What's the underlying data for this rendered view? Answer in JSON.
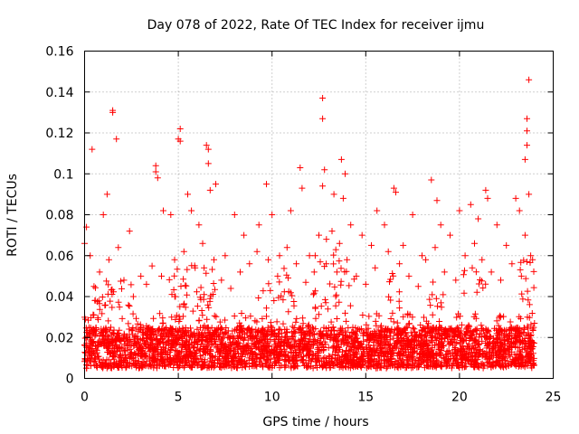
{
  "chart_data": {
    "type": "scatter",
    "title": "Day 078 of 2022, Rate Of TEC Index for receiver ijmu",
    "xlabel": "GPS time / hours",
    "ylabel": "ROTI / TECUs",
    "xlim": [
      0,
      25
    ],
    "ylim": [
      0,
      0.16
    ],
    "xticks": [
      0,
      5,
      10,
      15,
      20,
      25
    ],
    "xtick_labels": [
      "0",
      "5",
      "10",
      "15",
      "20",
      "25"
    ],
    "yticks": [
      0,
      0.02,
      0.04,
      0.06,
      0.08,
      0.1,
      0.12,
      0.14,
      0.16
    ],
    "ytick_labels": [
      "0",
      "0.02",
      "0.04",
      "0.06",
      "0.08",
      "0.1",
      "0.12",
      "0.14",
      "0.16"
    ],
    "grid": true,
    "marker": "plus",
    "color": "#ff0000",
    "series": [
      {
        "name": "ROTI",
        "points": [
          [
            0.4,
            0.112
          ],
          [
            1.5,
            0.131
          ],
          [
            1.5,
            0.13
          ],
          [
            1.7,
            0.117
          ],
          [
            1.2,
            0.09
          ],
          [
            1.0,
            0.08
          ],
          [
            0.1,
            0.074
          ],
          [
            0.0,
            0.066
          ],
          [
            0.3,
            0.06
          ],
          [
            2.4,
            0.072
          ],
          [
            3.0,
            0.05
          ],
          [
            3.8,
            0.104
          ],
          [
            3.8,
            0.101
          ],
          [
            3.9,
            0.098
          ],
          [
            4.2,
            0.082
          ],
          [
            4.6,
            0.08
          ],
          [
            5.0,
            0.117
          ],
          [
            5.1,
            0.122
          ],
          [
            5.1,
            0.116
          ],
          [
            5.5,
            0.09
          ],
          [
            5.7,
            0.082
          ],
          [
            6.1,
            0.075
          ],
          [
            6.5,
            0.114
          ],
          [
            6.6,
            0.112
          ],
          [
            6.6,
            0.105
          ],
          [
            6.7,
            0.092
          ],
          [
            7.0,
            0.095
          ],
          [
            7.5,
            0.06
          ],
          [
            8.0,
            0.08
          ],
          [
            8.5,
            0.07
          ],
          [
            9.3,
            0.075
          ],
          [
            9.7,
            0.095
          ],
          [
            10.0,
            0.08
          ],
          [
            10.4,
            0.06
          ],
          [
            11.0,
            0.082
          ],
          [
            11.5,
            0.103
          ],
          [
            11.6,
            0.093
          ],
          [
            12.0,
            0.06
          ],
          [
            12.5,
            0.07
          ],
          [
            12.7,
            0.137
          ],
          [
            12.7,
            0.127
          ],
          [
            12.8,
            0.102
          ],
          [
            12.7,
            0.094
          ],
          [
            13.3,
            0.09
          ],
          [
            13.7,
            0.107
          ],
          [
            13.9,
            0.1
          ],
          [
            13.8,
            0.088
          ],
          [
            14.2,
            0.075
          ],
          [
            14.8,
            0.07
          ],
          [
            15.3,
            0.065
          ],
          [
            15.6,
            0.082
          ],
          [
            16.0,
            0.075
          ],
          [
            16.5,
            0.093
          ],
          [
            16.6,
            0.091
          ],
          [
            17.0,
            0.065
          ],
          [
            17.5,
            0.08
          ],
          [
            18.0,
            0.06
          ],
          [
            18.5,
            0.097
          ],
          [
            18.8,
            0.087
          ],
          [
            19.0,
            0.075
          ],
          [
            19.5,
            0.07
          ],
          [
            20.0,
            0.082
          ],
          [
            20.6,
            0.085
          ],
          [
            21.0,
            0.078
          ],
          [
            21.4,
            0.092
          ],
          [
            21.5,
            0.088
          ],
          [
            22.0,
            0.075
          ],
          [
            22.5,
            0.065
          ],
          [
            23.0,
            0.088
          ],
          [
            23.2,
            0.082
          ],
          [
            23.5,
            0.07
          ],
          [
            23.7,
            0.146
          ],
          [
            23.6,
            0.127
          ],
          [
            23.6,
            0.121
          ],
          [
            23.6,
            0.114
          ],
          [
            23.5,
            0.107
          ],
          [
            23.7,
            0.09
          ],
          [
            23.8,
            0.06
          ],
          [
            0.5,
            0.045
          ],
          [
            0.8,
            0.052
          ],
          [
            1.3,
            0.058
          ],
          [
            1.8,
            0.064
          ],
          [
            2.1,
            0.048
          ],
          [
            2.6,
            0.04
          ],
          [
            3.3,
            0.046
          ],
          [
            3.6,
            0.055
          ],
          [
            4.1,
            0.05
          ],
          [
            4.8,
            0.058
          ],
          [
            5.3,
            0.062
          ],
          [
            5.9,
            0.054
          ],
          [
            6.3,
            0.066
          ],
          [
            6.9,
            0.058
          ],
          [
            7.3,
            0.048
          ],
          [
            7.8,
            0.044
          ],
          [
            8.3,
            0.052
          ],
          [
            8.8,
            0.056
          ],
          [
            9.2,
            0.062
          ],
          [
            9.8,
            0.058
          ],
          [
            10.3,
            0.05
          ],
          [
            10.8,
            0.064
          ],
          [
            11.3,
            0.056
          ],
          [
            11.8,
            0.047
          ],
          [
            12.3,
            0.06
          ],
          [
            12.9,
            0.068
          ],
          [
            13.2,
            0.072
          ],
          [
            13.6,
            0.066
          ],
          [
            14.0,
            0.058
          ],
          [
            14.5,
            0.05
          ],
          [
            15.0,
            0.046
          ],
          [
            15.5,
            0.054
          ],
          [
            16.2,
            0.062
          ],
          [
            16.8,
            0.056
          ],
          [
            17.3,
            0.05
          ],
          [
            17.8,
            0.045
          ],
          [
            18.2,
            0.058
          ],
          [
            18.7,
            0.064
          ],
          [
            19.2,
            0.052
          ],
          [
            19.8,
            0.048
          ],
          [
            20.3,
            0.06
          ],
          [
            20.8,
            0.066
          ],
          [
            21.2,
            0.058
          ],
          [
            21.7,
            0.052
          ],
          [
            22.2,
            0.048
          ],
          [
            22.8,
            0.056
          ],
          [
            23.3,
            0.05
          ],
          [
            23.9,
            0.058
          ]
        ]
      }
    ]
  }
}
